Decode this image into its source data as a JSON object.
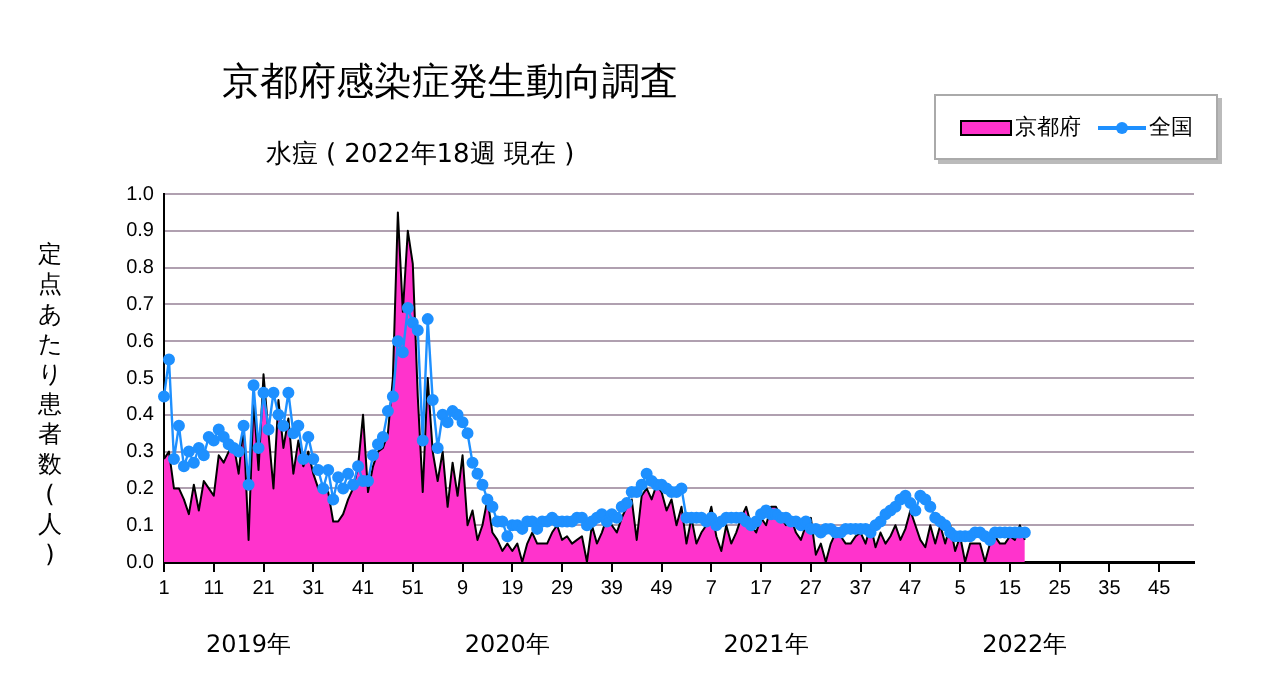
{
  "chart_data": {
    "type": "line",
    "title": "京都府感染症発生動向調査",
    "subtitle": "水痘 ( 2022年18週 現在 )",
    "ylabel": "定点あたり患者数(人)",
    "annotations": [
      "2019年",
      "2020年",
      "2021年",
      "2022年"
    ],
    "categories": [
      "1",
      null,
      null,
      null,
      null,
      null,
      null,
      null,
      null,
      null,
      "11",
      null,
      null,
      null,
      null,
      null,
      null,
      null,
      null,
      null,
      "21",
      null,
      null,
      null,
      null,
      null,
      null,
      null,
      null,
      null,
      "31",
      null,
      null,
      null,
      null,
      null,
      null,
      null,
      null,
      null,
      "41",
      null,
      null,
      null,
      null,
      null,
      null,
      null,
      null,
      null,
      "51",
      null,
      null,
      null,
      null,
      null,
      null,
      null,
      null,
      null,
      "9",
      null,
      null,
      null,
      null,
      null,
      null,
      null,
      null,
      null,
      "19",
      null,
      null,
      null,
      null,
      null,
      null,
      null,
      null,
      null,
      "29",
      null,
      null,
      null,
      null,
      null,
      null,
      null,
      null,
      null,
      "39",
      null,
      null,
      null,
      null,
      null,
      null,
      null,
      null,
      null,
      "49",
      null,
      null,
      null,
      null,
      null,
      null,
      null,
      null,
      null,
      "7",
      null,
      null,
      null,
      null,
      null,
      null,
      null,
      null,
      null,
      "17",
      null,
      null,
      null,
      null,
      null,
      null,
      null,
      null,
      null,
      "27",
      null,
      null,
      null,
      null,
      null,
      null,
      null,
      null,
      null,
      "37",
      null,
      null,
      null,
      null,
      null,
      null,
      null,
      null,
      null,
      "47",
      null,
      null,
      null,
      null,
      null,
      null,
      null,
      null,
      null,
      "5",
      null,
      null,
      null,
      null,
      null,
      null,
      null,
      null,
      null,
      "15",
      null,
      null,
      null,
      null,
      null,
      null,
      null,
      null,
      null,
      "25",
      null,
      null,
      null,
      null,
      null,
      null,
      null,
      null,
      null,
      "35",
      null,
      null,
      null,
      null,
      null,
      null,
      null,
      null,
      null,
      "45",
      null,
      null,
      null,
      null,
      null,
      null,
      null
    ],
    "series": [
      {
        "name": "京都府",
        "type": "area",
        "color": "#ff33cc",
        "marker": "none",
        "values": [
          0.28,
          0.3,
          0.2,
          0.2,
          0.17,
          0.13,
          0.21,
          0.14,
          0.22,
          0.2,
          0.18,
          0.29,
          0.27,
          0.3,
          0.32,
          0.24,
          0.37,
          0.06,
          0.44,
          0.25,
          0.51,
          0.35,
          0.2,
          0.44,
          0.31,
          0.39,
          0.24,
          0.33,
          0.26,
          0.3,
          0.24,
          0.2,
          0.2,
          0.19,
          0.11,
          0.11,
          0.13,
          0.17,
          0.2,
          0.26,
          0.4,
          0.19,
          0.26,
          0.3,
          0.31,
          0.35,
          0.5,
          0.95,
          0.68,
          0.9,
          0.81,
          0.45,
          0.19,
          0.5,
          0.3,
          0.22,
          0.3,
          0.15,
          0.27,
          0.18,
          0.29,
          0.1,
          0.14,
          0.06,
          0.1,
          0.17,
          0.08,
          0.06,
          0.03,
          0.05,
          0.03,
          0.05,
          0.0,
          0.05,
          0.08,
          0.05,
          0.05,
          0.05,
          0.08,
          0.1,
          0.06,
          0.07,
          0.05,
          0.06,
          0.07,
          0.0,
          0.1,
          0.05,
          0.08,
          0.12,
          0.1,
          0.08,
          0.12,
          0.15,
          0.17,
          0.06,
          0.18,
          0.2,
          0.17,
          0.21,
          0.19,
          0.14,
          0.17,
          0.1,
          0.15,
          0.05,
          0.12,
          0.05,
          0.08,
          0.1,
          0.15,
          0.07,
          0.03,
          0.1,
          0.05,
          0.08,
          0.12,
          0.15,
          0.1,
          0.08,
          0.12,
          0.1,
          0.15,
          0.15,
          0.12,
          0.1,
          0.12,
          0.08,
          0.06,
          0.1,
          0.12,
          0.02,
          0.05,
          0.0,
          0.05,
          0.08,
          0.07,
          0.05,
          0.05,
          0.07,
          0.08,
          0.05,
          0.1,
          0.04,
          0.08,
          0.05,
          0.07,
          0.1,
          0.06,
          0.09,
          0.14,
          0.1,
          0.06,
          0.04,
          0.1,
          0.05,
          0.1,
          0.05,
          0.1,
          0.03,
          0.07,
          0.0,
          0.05,
          0.05,
          0.05,
          0.0,
          0.05,
          0.07,
          0.05,
          0.05,
          0.07,
          0.06,
          0.1,
          0.06,
          null,
          null,
          null,
          null,
          null,
          null,
          null,
          null,
          null,
          null,
          null,
          null,
          null,
          null,
          null,
          null,
          null,
          null,
          null,
          null,
          null,
          null,
          null,
          null,
          null,
          null,
          null,
          null,
          null,
          null,
          null,
          null,
          null,
          null
        ]
      },
      {
        "name": "全国",
        "type": "line",
        "color": "#1e90ff",
        "marker": "circle",
        "values": [
          0.45,
          0.55,
          0.28,
          0.37,
          0.26,
          0.3,
          0.27,
          0.31,
          0.29,
          0.34,
          0.33,
          0.36,
          0.34,
          0.32,
          0.31,
          0.3,
          0.37,
          0.21,
          0.48,
          0.31,
          0.46,
          0.36,
          0.46,
          0.4,
          0.37,
          0.46,
          0.35,
          0.37,
          0.28,
          0.34,
          0.28,
          0.25,
          0.2,
          0.25,
          0.17,
          0.23,
          0.2,
          0.24,
          0.21,
          0.26,
          0.22,
          0.22,
          0.29,
          0.32,
          0.34,
          0.41,
          0.45,
          0.6,
          0.57,
          0.69,
          0.65,
          0.63,
          0.33,
          0.66,
          0.44,
          0.31,
          0.4,
          0.38,
          0.41,
          0.4,
          0.38,
          0.35,
          0.27,
          0.24,
          0.21,
          0.17,
          0.15,
          0.11,
          0.11,
          0.07,
          0.1,
          0.1,
          0.09,
          0.11,
          0.11,
          0.09,
          0.11,
          0.11,
          0.12,
          0.11,
          0.11,
          0.11,
          0.11,
          0.12,
          0.12,
          0.1,
          0.11,
          0.12,
          0.13,
          0.11,
          0.13,
          0.12,
          0.15,
          0.16,
          0.19,
          0.19,
          0.21,
          0.24,
          0.22,
          0.21,
          0.21,
          0.2,
          0.19,
          0.19,
          0.2,
          0.12,
          0.12,
          0.12,
          0.12,
          0.11,
          0.12,
          0.1,
          0.11,
          0.12,
          0.12,
          0.12,
          0.12,
          0.11,
          0.1,
          0.11,
          0.13,
          0.14,
          0.13,
          0.13,
          0.12,
          0.12,
          0.11,
          0.11,
          0.1,
          0.11,
          0.09,
          0.09,
          0.08,
          0.09,
          0.09,
          0.08,
          0.08,
          0.09,
          0.09,
          0.09,
          0.09,
          0.09,
          0.08,
          0.1,
          0.11,
          0.13,
          0.14,
          0.15,
          0.17,
          0.18,
          0.16,
          0.14,
          0.18,
          0.17,
          0.15,
          0.12,
          0.11,
          0.1,
          0.08,
          0.07,
          0.07,
          0.07,
          0.07,
          0.08,
          0.08,
          0.07,
          0.06,
          0.08,
          0.08,
          0.08,
          0.08,
          0.08,
          0.08,
          0.08,
          null,
          null,
          null,
          null,
          null,
          null,
          null,
          null,
          null,
          null,
          null,
          null,
          null,
          null,
          null,
          null,
          null,
          null,
          null,
          null,
          null,
          null,
          null,
          null,
          null,
          null,
          null,
          null,
          null,
          null,
          null,
          null,
          null,
          null
        ]
      }
    ],
    "ylim": [
      0,
      1.0
    ],
    "yticks": [
      {
        "value": 0,
        "label": "0.0"
      },
      {
        "value": 0.1,
        "label": "0.1"
      },
      {
        "value": 0.2,
        "label": "0.2"
      },
      {
        "value": 0.3,
        "label": "0.3"
      },
      {
        "value": 0.4,
        "label": "0.4"
      },
      {
        "value": 0.5,
        "label": "0.5"
      },
      {
        "value": 0.6,
        "label": "0.6"
      },
      {
        "value": 0.7,
        "label": "0.7"
      },
      {
        "value": 0.8,
        "label": "0.8"
      },
      {
        "value": 0.9,
        "label": "0.9"
      },
      {
        "value": 1.0,
        "label": "1.0"
      }
    ],
    "grid": "y",
    "legend": "top right"
  }
}
